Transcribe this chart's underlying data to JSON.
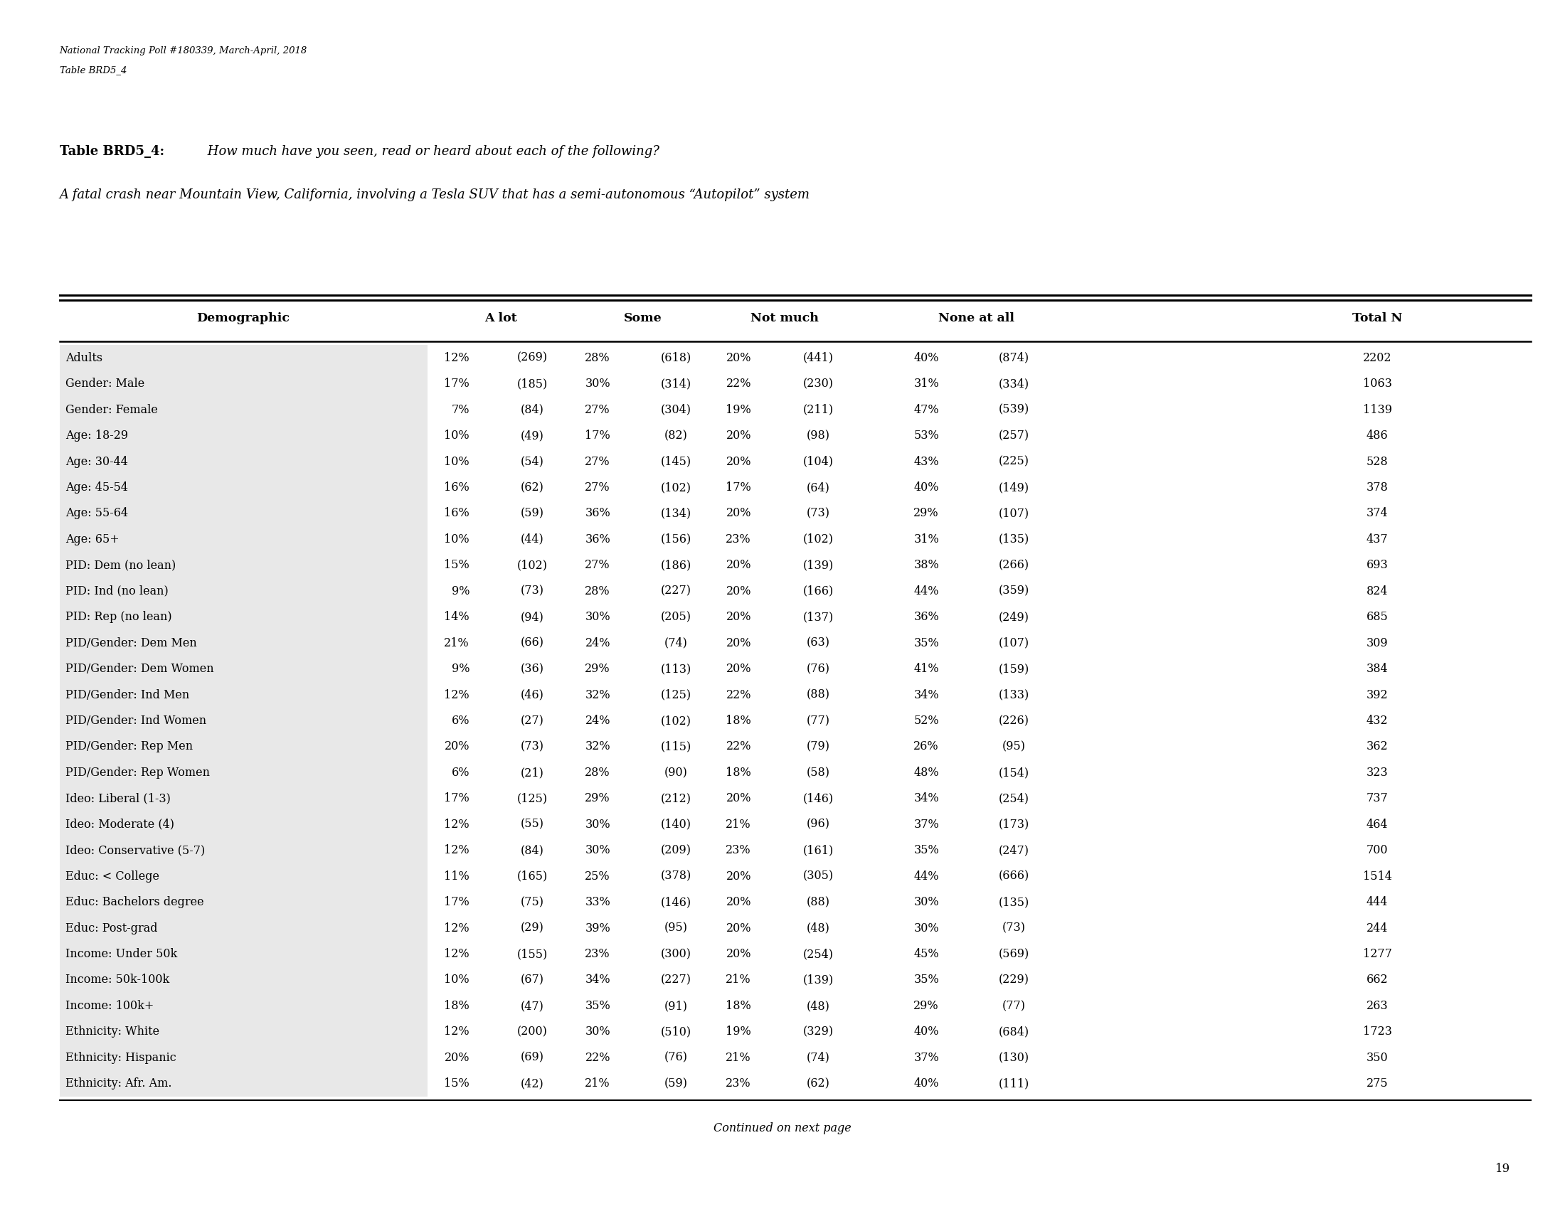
{
  "header_top1": "National Tracking Poll #180339, March-April, 2018",
  "header_top2": "Table BRD5_4",
  "title_bold": "Table BRD5_4:",
  "title_italic": " How much have you seen, read or heard about each of the following?",
  "subtitle_italic": "A fatal crash near Mountain View, California, involving a Tesla SUV that has a semi-autonomous “Autopilot” system",
  "rows": [
    [
      "Adults",
      "12%",
      "(269)",
      "28%",
      "(618)",
      "20%",
      "(441)",
      "40%",
      "(874)",
      "2202"
    ],
    [
      "Gender: Male",
      "17%",
      "(185)",
      "30%",
      "(314)",
      "22%",
      "(230)",
      "31%",
      "(334)",
      "1063"
    ],
    [
      "Gender: Female",
      "7%",
      "(84)",
      "27%",
      "(304)",
      "19%",
      "(211)",
      "47%",
      "(539)",
      "1139"
    ],
    [
      "Age: 18-29",
      "10%",
      "(49)",
      "17%",
      "(82)",
      "20%",
      "(98)",
      "53%",
      "(257)",
      "486"
    ],
    [
      "Age: 30-44",
      "10%",
      "(54)",
      "27%",
      "(145)",
      "20%",
      "(104)",
      "43%",
      "(225)",
      "528"
    ],
    [
      "Age: 45-54",
      "16%",
      "(62)",
      "27%",
      "(102)",
      "17%",
      "(64)",
      "40%",
      "(149)",
      "378"
    ],
    [
      "Age: 55-64",
      "16%",
      "(59)",
      "36%",
      "(134)",
      "20%",
      "(73)",
      "29%",
      "(107)",
      "374"
    ],
    [
      "Age: 65+",
      "10%",
      "(44)",
      "36%",
      "(156)",
      "23%",
      "(102)",
      "31%",
      "(135)",
      "437"
    ],
    [
      "PID: Dem (no lean)",
      "15%",
      "(102)",
      "27%",
      "(186)",
      "20%",
      "(139)",
      "38%",
      "(266)",
      "693"
    ],
    [
      "PID: Ind (no lean)",
      "9%",
      "(73)",
      "28%",
      "(227)",
      "20%",
      "(166)",
      "44%",
      "(359)",
      "824"
    ],
    [
      "PID: Rep (no lean)",
      "14%",
      "(94)",
      "30%",
      "(205)",
      "20%",
      "(137)",
      "36%",
      "(249)",
      "685"
    ],
    [
      "PID/Gender: Dem Men",
      "21%",
      "(66)",
      "24%",
      "(74)",
      "20%",
      "(63)",
      "35%",
      "(107)",
      "309"
    ],
    [
      "PID/Gender: Dem Women",
      "9%",
      "(36)",
      "29%",
      "(113)",
      "20%",
      "(76)",
      "41%",
      "(159)",
      "384"
    ],
    [
      "PID/Gender: Ind Men",
      "12%",
      "(46)",
      "32%",
      "(125)",
      "22%",
      "(88)",
      "34%",
      "(133)",
      "392"
    ],
    [
      "PID/Gender: Ind Women",
      "6%",
      "(27)",
      "24%",
      "(102)",
      "18%",
      "(77)",
      "52%",
      "(226)",
      "432"
    ],
    [
      "PID/Gender: Rep Men",
      "20%",
      "(73)",
      "32%",
      "(115)",
      "22%",
      "(79)",
      "26%",
      "(95)",
      "362"
    ],
    [
      "PID/Gender: Rep Women",
      "6%",
      "(21)",
      "28%",
      "(90)",
      "18%",
      "(58)",
      "48%",
      "(154)",
      "323"
    ],
    [
      "Ideo: Liberal (1-3)",
      "17%",
      "(125)",
      "29%",
      "(212)",
      "20%",
      "(146)",
      "34%",
      "(254)",
      "737"
    ],
    [
      "Ideo: Moderate (4)",
      "12%",
      "(55)",
      "30%",
      "(140)",
      "21%",
      "(96)",
      "37%",
      "(173)",
      "464"
    ],
    [
      "Ideo: Conservative (5-7)",
      "12%",
      "(84)",
      "30%",
      "(209)",
      "23%",
      "(161)",
      "35%",
      "(247)",
      "700"
    ],
    [
      "Educ: < College",
      "11%",
      "(165)",
      "25%",
      "(378)",
      "20%",
      "(305)",
      "44%",
      "(666)",
      "1514"
    ],
    [
      "Educ: Bachelors degree",
      "17%",
      "(75)",
      "33%",
      "(146)",
      "20%",
      "(88)",
      "30%",
      "(135)",
      "444"
    ],
    [
      "Educ: Post-grad",
      "12%",
      "(29)",
      "39%",
      "(95)",
      "20%",
      "(48)",
      "30%",
      "(73)",
      "244"
    ],
    [
      "Income: Under 50k",
      "12%",
      "(155)",
      "23%",
      "(300)",
      "20%",
      "(254)",
      "45%",
      "(569)",
      "1277"
    ],
    [
      "Income: 50k-100k",
      "10%",
      "(67)",
      "34%",
      "(227)",
      "21%",
      "(139)",
      "35%",
      "(229)",
      "662"
    ],
    [
      "Income: 100k+",
      "18%",
      "(47)",
      "35%",
      "(91)",
      "18%",
      "(48)",
      "29%",
      "(77)",
      "263"
    ],
    [
      "Ethnicity: White",
      "12%",
      "(200)",
      "30%",
      "(510)",
      "19%",
      "(329)",
      "40%",
      "(684)",
      "1723"
    ],
    [
      "Ethnicity: Hispanic",
      "20%",
      "(69)",
      "22%",
      "(76)",
      "21%",
      "(74)",
      "37%",
      "(130)",
      "350"
    ],
    [
      "Ethnicity: Afr. Am.",
      "15%",
      "(42)",
      "21%",
      "(59)",
      "23%",
      "(62)",
      "40%",
      "(111)",
      "275"
    ]
  ],
  "footer": "Continued on next page",
  "page_number": "19"
}
